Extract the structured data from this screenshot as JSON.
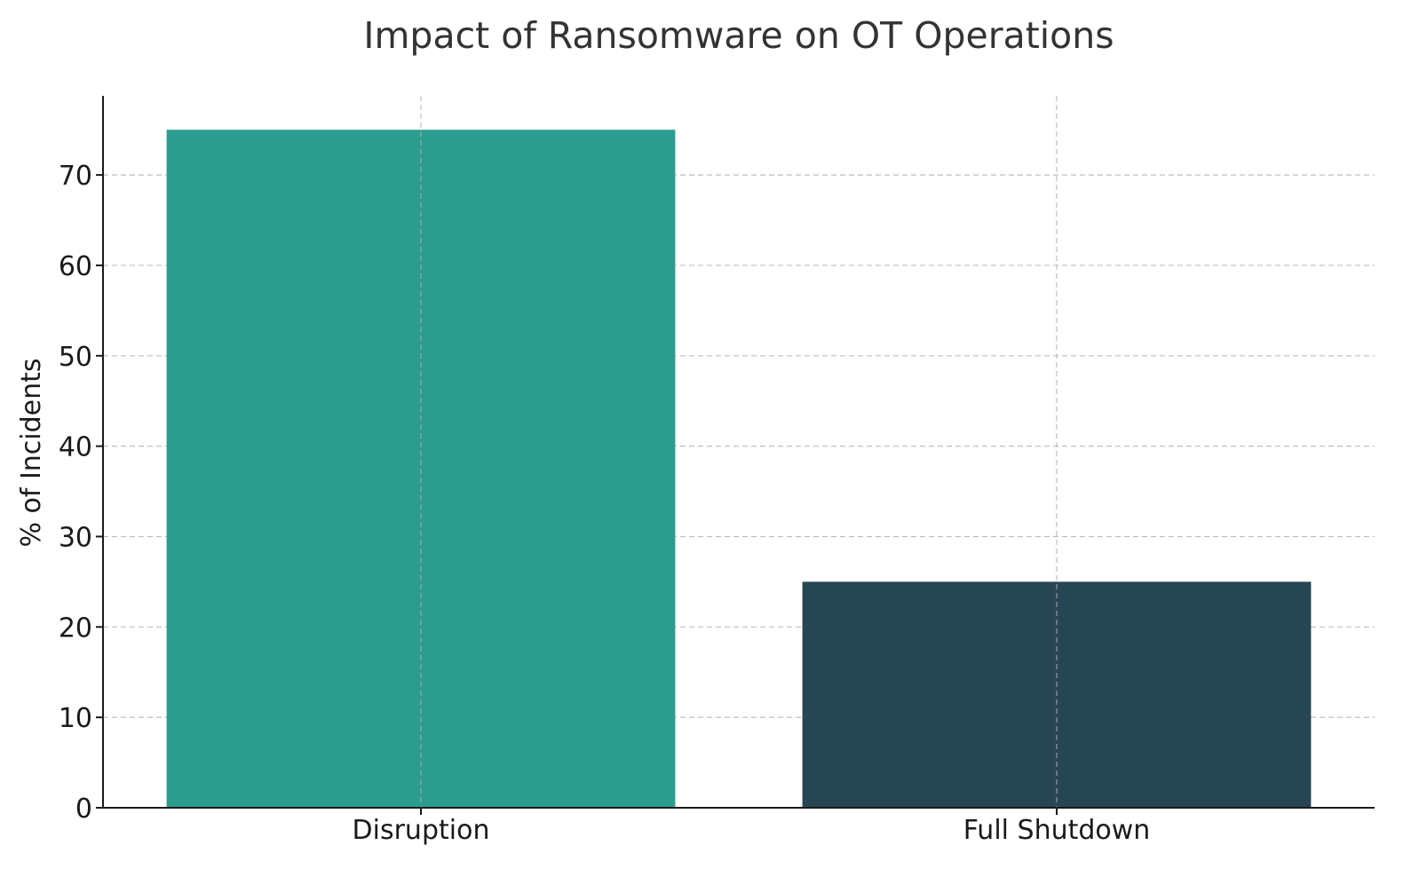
{
  "chart_data": {
    "type": "bar",
    "title": "Impact of Ransomware on OT Operations",
    "xlabel": "",
    "ylabel": "% of Incidents",
    "categories": [
      "Disruption",
      "Full Shutdown"
    ],
    "values": [
      75,
      25
    ],
    "bar_colors": [
      "#2a9d8f",
      "#264653"
    ],
    "ylim": [
      0,
      78.75
    ],
    "yticks": [
      0,
      10,
      20,
      30,
      40,
      50,
      60,
      70
    ],
    "grid": true,
    "grid_style": "dashed"
  }
}
